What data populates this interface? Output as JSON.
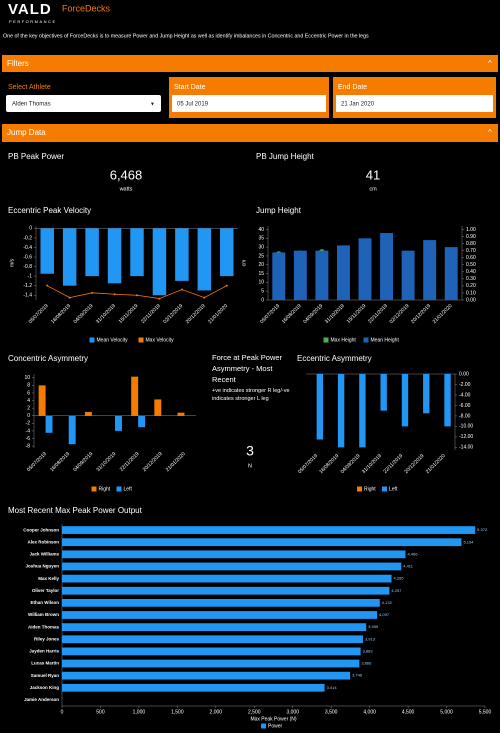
{
  "header": {
    "logo": "VALD",
    "logo_sub": "PERFORMANCE",
    "app": "ForceDecks",
    "description": "One of the key objectives of ForceDecks is to measure Power and Jump Height as well as identify imbalances in Concentric and Eccentric Power in the legs"
  },
  "filters": {
    "title": "Filters",
    "athlete_label": "Select Athlete",
    "athlete": "Alden Thomas",
    "start_label": "Start Date",
    "start": "05 Jul 2019",
    "end_label": "End Date",
    "end": "21 Jan 2020"
  },
  "section": "Jump Data",
  "kpis": [
    {
      "title": "PB Peak Power",
      "value": "6,468",
      "unit": "watts"
    },
    {
      "title": "PB Jump Height",
      "value": "41",
      "unit": "cm"
    }
  ],
  "force_panel": {
    "title": "Force at Peak Power Asymmetry - Most Recent",
    "note": "+ve indicates stronger R leg/-ve indicates stronger L leg",
    "value": "3",
    "unit": "N"
  },
  "chart_data": [
    {
      "type": "bar",
      "title": "Eccentric Peak Velocity",
      "ylabel": "m/s",
      "categories": [
        "05/07/2019",
        "16/08/2019",
        "04/09/2019",
        "31/10/2019",
        "15/11/2019",
        "22/11/2019",
        "02/12/2019",
        "20/12/2019",
        "21/01/2020"
      ],
      "series": [
        {
          "name": "Mean Velocity",
          "color": "#2196f3",
          "values": [
            -0.95,
            -1.2,
            -1.0,
            -1.15,
            -1.0,
            -1.4,
            -1.1,
            -1.3,
            -1.0
          ]
        },
        {
          "name": "Max Velocity",
          "type": "line",
          "color": "#f57c00",
          "values": [
            -1.2,
            -1.45,
            -1.35,
            -1.38,
            -1.4,
            -1.47,
            -1.28,
            -1.45,
            -1.2
          ]
        }
      ],
      "ylim": [
        -1.5,
        0.05
      ],
      "yticks": [
        0,
        -0.2,
        -0.4,
        -0.6,
        -0.8,
        -1,
        -1.2,
        -1.4
      ]
    },
    {
      "type": "bar",
      "title": "Jump Height",
      "ylabel": "cm",
      "categories": [
        "05/07/2019",
        "16/08/2019",
        "04/09/2019",
        "31/10/2019",
        "15/11/2019",
        "22/11/2019",
        "02/12/2019",
        "20/12/2019",
        "21/01/2020"
      ],
      "series": [
        {
          "name": "Max Height",
          "type": "scatter",
          "axis": "y2",
          "color": "#4caf50",
          "values": [
            0.65,
            0.66,
            0.68,
            0.72,
            0.75,
            0.8,
            0.65,
            0.75,
            0.7
          ]
        },
        {
          "name": "Mean Height",
          "color": "#1e63b8",
          "values": [
            27,
            28,
            28,
            31,
            35,
            38,
            28,
            34,
            30
          ]
        }
      ],
      "ylim": [
        0,
        42
      ],
      "yticks": [
        0,
        5,
        10,
        15,
        20,
        25,
        30,
        35,
        40
      ],
      "y2lim": [
        0,
        1.05
      ],
      "y2ticks": [
        {
          "value": 0,
          "label": "0.00"
        },
        {
          "value": 0.1,
          "label": "0.10"
        },
        {
          "value": 0.2,
          "label": "0.20"
        },
        {
          "value": 0.3,
          "label": "0.30"
        },
        {
          "value": 0.4,
          "label": "0.40"
        },
        {
          "value": 0.5,
          "label": "0.50"
        },
        {
          "value": 0.6,
          "label": "0.60"
        },
        {
          "value": 0.7,
          "label": "0.70"
        },
        {
          "value": 0.8,
          "label": "0.80"
        },
        {
          "value": 0.9,
          "label": "0.90"
        },
        {
          "value": 1,
          "label": "1.00"
        }
      ]
    },
    {
      "type": "bar",
      "title": "Concentric Asymmetry",
      "categories": [
        "05/07/2019",
        "16/08/2019",
        "04/09/2019",
        "31/10/2019",
        "22/11/2019",
        "20/12/2019",
        "21/01/2020"
      ],
      "series": [
        {
          "name": "Right",
          "color": "#f57c00",
          "values": [
            8,
            0,
            1,
            0,
            10.3,
            4.3,
            0.8
          ]
        },
        {
          "name": "Left",
          "color": "#2196f3",
          "values": [
            -4.5,
            -7.5,
            0,
            -4,
            -3,
            0,
            0
          ]
        }
      ],
      "ylim": [
        -8.5,
        11
      ],
      "yticks": [
        -8,
        -6,
        -4,
        -2,
        0,
        2,
        4,
        6,
        8,
        10
      ]
    },
    {
      "type": "bar",
      "title": "Eccentric Asymmetry",
      "yaxis_side": "right",
      "categories": [
        "05/07/2019",
        "16/08/2019",
        "04/09/2019",
        "31/10/2019",
        "22/11/2019",
        "20/12/2019",
        "21/01/2020"
      ],
      "series": [
        {
          "name": "Right",
          "color": "#f57c00",
          "values": [
            0,
            0,
            0,
            0,
            0,
            0,
            0
          ]
        },
        {
          "name": "Left",
          "color": "#2196f3",
          "values": [
            -12.5,
            -14,
            -14,
            -7,
            -10,
            -7.5,
            -10
          ]
        }
      ],
      "ylim": [
        -14.5,
        0
      ],
      "yticks": [
        {
          "value": 0,
          "label": "0.00"
        },
        {
          "value": -2,
          "label": "-2.00"
        },
        {
          "value": -4,
          "label": "-4.00"
        },
        {
          "value": -6,
          "label": "-6.00"
        },
        {
          "value": -8,
          "label": "-8.00"
        },
        {
          "value": -10,
          "label": "-10.00"
        },
        {
          "value": -12,
          "label": "-12.00"
        },
        {
          "value": -14,
          "label": "-14.00"
        }
      ]
    },
    {
      "type": "bar",
      "orientation": "horizontal",
      "title": "Most Recent Max Peak Power Output",
      "xlabel": "Max Peak Power (N)",
      "categories": [
        "Cooper Johnson",
        "Alex Robinson",
        "Jack Williams",
        "Joshua Nguyen",
        "Max Kelly",
        "Oliver Taylor",
        "Ethan Wilson",
        "William Brown",
        "Aiden Thomas",
        "Riley Jones",
        "Jayden Harris",
        "Lucas Martin",
        "Samuel Ryan",
        "Jackson King",
        "Jamie Anderson"
      ],
      "series": [
        {
          "name": "Power",
          "color": "#2196f3",
          "values": [
            5372,
            5194,
            4466,
            4411,
            4285,
            4257,
            4132,
            4097,
            3955,
            3913,
            3883,
            3866,
            3746,
            3414,
            null
          ],
          "value_labels": [
            "5,372",
            "5,194",
            "4,466",
            "4,411",
            "4,285",
            "4,257",
            "4,132",
            "4,097",
            "3,955",
            "3,913",
            "3,883",
            "3,866",
            "3,746",
            "3,414",
            null
          ]
        }
      ],
      "xlim": [
        0,
        5500
      ],
      "xticks": [
        0,
        500,
        {
          "value": 1000,
          "label": "1,000"
        },
        {
          "value": 1500,
          "label": "1,500"
        },
        {
          "value": 2000,
          "label": "2,000"
        },
        {
          "value": 2500,
          "label": "2,500"
        },
        {
          "value": 3000,
          "label": "3,000"
        },
        {
          "value": 3500,
          "label": "3,500"
        },
        {
          "value": 4000,
          "label": "4,000"
        },
        {
          "value": 4500,
          "label": "4,500"
        },
        {
          "value": 5000,
          "label": "5,000"
        },
        {
          "value": 5500,
          "label": "5,500"
        }
      ]
    }
  ]
}
